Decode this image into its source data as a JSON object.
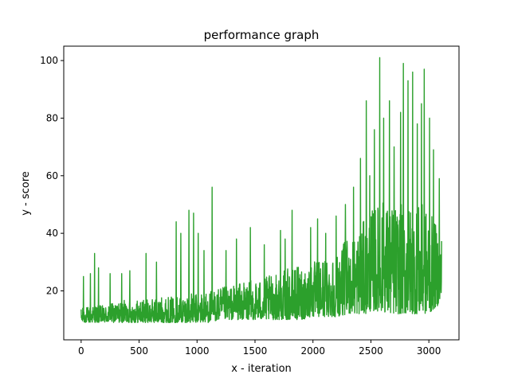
{
  "chart_data": {
    "type": "line",
    "title": "performance graph",
    "xlabel": "x - iteration",
    "ylabel": "y - score",
    "xlim": [
      -150,
      3260
    ],
    "ylim": [
      3,
      105
    ],
    "xticks": [
      0,
      500,
      1000,
      1500,
      2000,
      2500,
      3000
    ],
    "yticks": [
      20,
      40,
      60,
      80,
      100
    ],
    "grid": false,
    "legend": "none",
    "series_color": "#2ca02c",
    "x_range": [
      0,
      3110
    ],
    "envelope": {
      "x": [
        0,
        100,
        200,
        300,
        400,
        500,
        600,
        700,
        800,
        900,
        1000,
        1100,
        1200,
        1300,
        1400,
        1500,
        1600,
        1700,
        1800,
        1900,
        2000,
        2100,
        2200,
        2300,
        2400,
        2450,
        2500,
        2550,
        2600,
        2650,
        2700,
        2750,
        2800,
        2850,
        2900,
        2950,
        3000,
        3050,
        3110
      ],
      "low": [
        9,
        9,
        9,
        9,
        9,
        9,
        9,
        9,
        9,
        9,
        9,
        9,
        10,
        10,
        10,
        10,
        10,
        10,
        10,
        10,
        11,
        11,
        11,
        12,
        12,
        12,
        13,
        13,
        13,
        12,
        12,
        12,
        12,
        12,
        12,
        12,
        12,
        14,
        16
      ],
      "high": [
        14,
        15,
        15,
        16,
        17,
        17,
        17,
        18,
        18,
        19,
        19,
        20,
        21,
        22,
        23,
        24,
        25,
        26,
        28,
        29,
        30,
        32,
        34,
        38,
        42,
        45,
        48,
        50,
        52,
        50,
        50,
        50,
        50,
        50,
        50,
        50,
        48,
        44,
        40
      ]
    },
    "spikes": [
      [
        20,
        25
      ],
      [
        80,
        26
      ],
      [
        115,
        33
      ],
      [
        150,
        28
      ],
      [
        250,
        26
      ],
      [
        350,
        26
      ],
      [
        420,
        27
      ],
      [
        560,
        33
      ],
      [
        650,
        30
      ],
      [
        820,
        44
      ],
      [
        860,
        40
      ],
      [
        930,
        48
      ],
      [
        970,
        47
      ],
      [
        1010,
        40
      ],
      [
        1060,
        34
      ],
      [
        1130,
        56
      ],
      [
        1250,
        34
      ],
      [
        1340,
        38
      ],
      [
        1460,
        42
      ],
      [
        1580,
        36
      ],
      [
        1720,
        41
      ],
      [
        1760,
        38
      ],
      [
        1820,
        48
      ],
      [
        1980,
        42
      ],
      [
        2040,
        45
      ],
      [
        2110,
        40
      ],
      [
        2200,
        46
      ],
      [
        2280,
        50
      ],
      [
        2350,
        56
      ],
      [
        2410,
        66
      ],
      [
        2460,
        86
      ],
      [
        2490,
        60
      ],
      [
        2530,
        76
      ],
      [
        2575,
        101
      ],
      [
        2610,
        80
      ],
      [
        2660,
        86
      ],
      [
        2700,
        70
      ],
      [
        2755,
        82
      ],
      [
        2780,
        99
      ],
      [
        2820,
        93
      ],
      [
        2860,
        96
      ],
      [
        2900,
        78
      ],
      [
        2935,
        85
      ],
      [
        2960,
        97
      ],
      [
        3005,
        80
      ],
      [
        3040,
        69
      ],
      [
        3090,
        59
      ]
    ]
  }
}
